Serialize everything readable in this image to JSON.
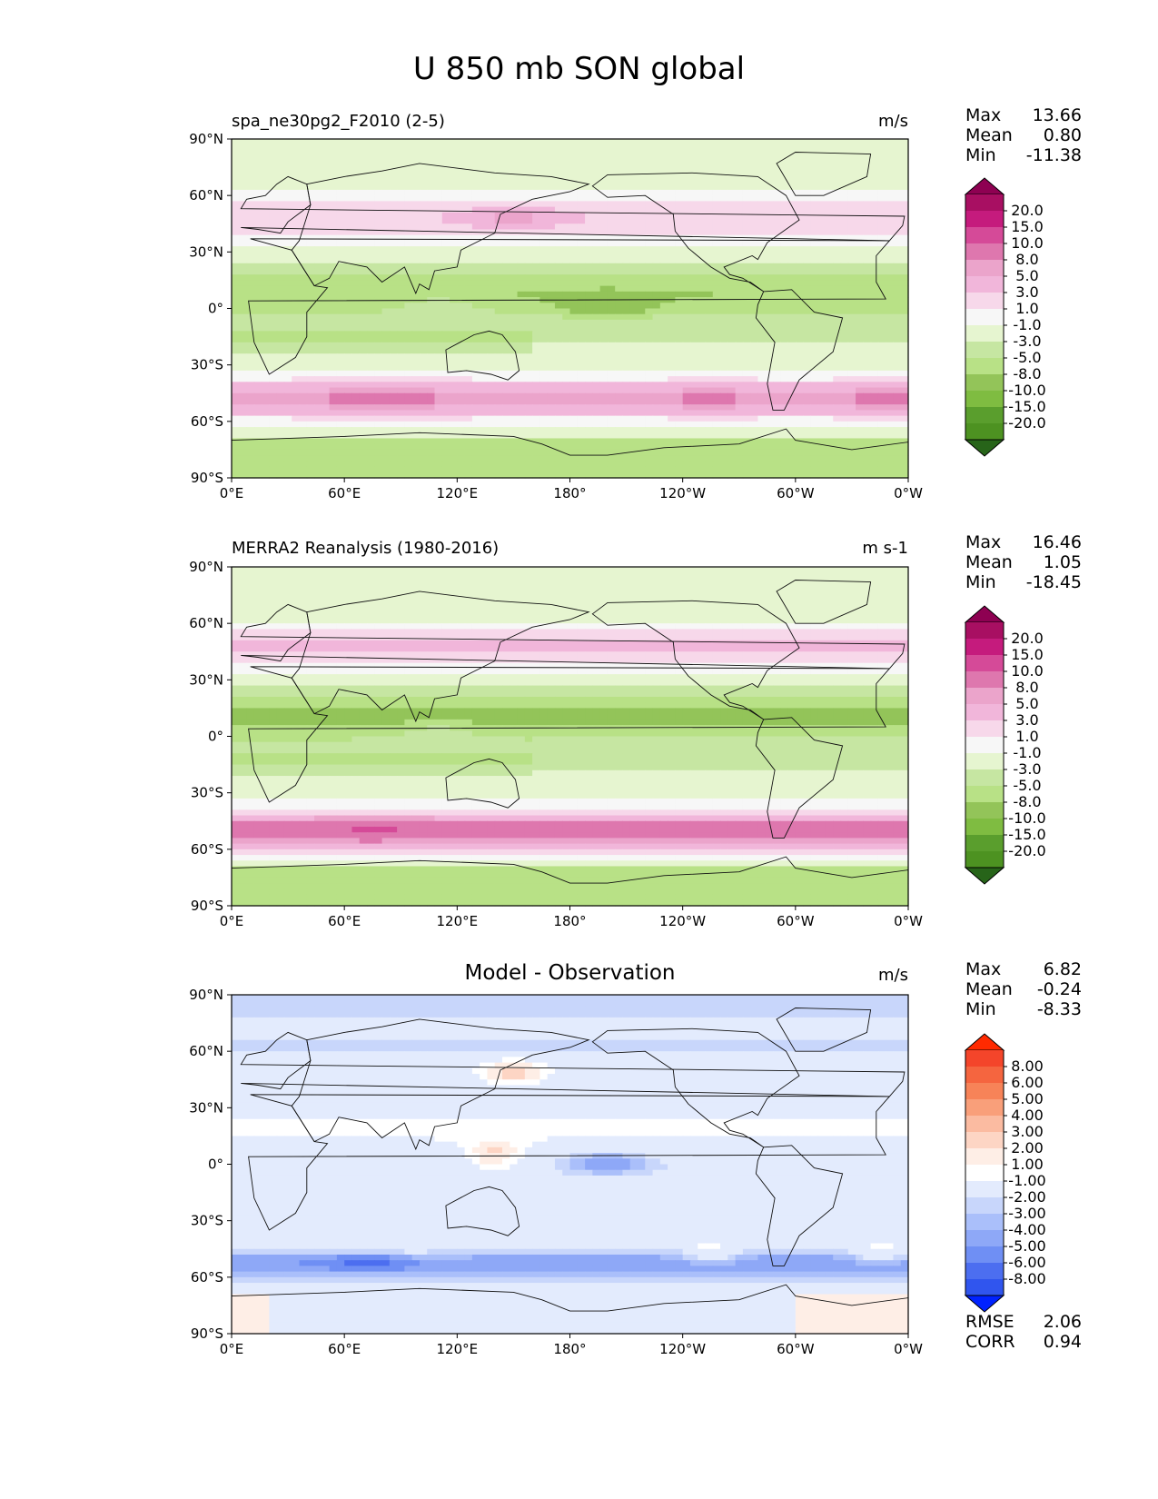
{
  "figure": {
    "title": "U 850 mb SON global"
  },
  "axes": {
    "lat_ticks": [
      "90°N",
      "60°N",
      "30°N",
      "0°",
      "30°S",
      "60°S",
      "90°S"
    ],
    "lon_ticks": [
      "0°E",
      "60°E",
      "120°E",
      "180°",
      "120°W",
      "60°W",
      "0°W"
    ]
  },
  "panels": [
    {
      "left_title": "spa_ne30pg2_F2010 (2-5)",
      "center_title": "",
      "units": "m/s",
      "stats": [
        {
          "label": "Max",
          "value": "13.66"
        },
        {
          "label": "Mean",
          "value": "0.80"
        },
        {
          "label": "Min",
          "value": "-11.38"
        }
      ],
      "extra_stats": [],
      "colorbar": {
        "labels": [
          "20.0",
          "15.0",
          "10.0",
          "8.0",
          "5.0",
          "3.0",
          "1.0",
          "-1.0",
          "-3.0",
          "-5.0",
          "-8.0",
          "-10.0",
          "-15.0",
          "-20.0"
        ],
        "colors": [
          "#8e0152",
          "#a80f62",
          "#c51b7d",
          "#d54a98",
          "#de77ae",
          "#eba4cb",
          "#f1b6da",
          "#f7d8ea",
          "#f7f7f7",
          "#e6f5d0",
          "#c6e6a2",
          "#b8e186",
          "#93c459",
          "#7fbc41",
          "#5a9e2d",
          "#4d9221",
          "#276419"
        ]
      }
    },
    {
      "left_title": "MERRA2 Reanalysis (1980-2016)",
      "center_title": "",
      "units": "m s-1",
      "stats": [
        {
          "label": "Max",
          "value": "16.46"
        },
        {
          "label": "Mean",
          "value": "1.05"
        },
        {
          "label": "Min",
          "value": "-18.45"
        }
      ],
      "extra_stats": [],
      "colorbar": {
        "labels": [
          "20.0",
          "15.0",
          "10.0",
          "8.0",
          "5.0",
          "3.0",
          "1.0",
          "-1.0",
          "-3.0",
          "-5.0",
          "-8.0",
          "-10.0",
          "-15.0",
          "-20.0"
        ],
        "colors": [
          "#8e0152",
          "#a80f62",
          "#c51b7d",
          "#d54a98",
          "#de77ae",
          "#eba4cb",
          "#f1b6da",
          "#f7d8ea",
          "#f7f7f7",
          "#e6f5d0",
          "#c6e6a2",
          "#b8e186",
          "#93c459",
          "#7fbc41",
          "#5a9e2d",
          "#4d9221",
          "#276419"
        ]
      }
    },
    {
      "left_title": "",
      "center_title": "Model - Observation",
      "units": "m/s",
      "stats": [
        {
          "label": "Max",
          "value": "6.82"
        },
        {
          "label": "Mean",
          "value": "-0.24"
        },
        {
          "label": "Min",
          "value": "-8.33"
        }
      ],
      "extra_stats": [
        {
          "label": "RMSE",
          "value": "2.06"
        },
        {
          "label": "CORR",
          "value": "0.94"
        }
      ],
      "colorbar": {
        "labels": [
          "8.00",
          "6.00",
          "5.00",
          "4.00",
          "3.00",
          "2.00",
          "1.00",
          "-1.00",
          "-2.00",
          "-3.00",
          "-4.00",
          "-5.00",
          "-6.00",
          "-8.00"
        ],
        "colors": [
          "#ff2a00",
          "#f4452a",
          "#f5653f",
          "#f78358",
          "#f99f7a",
          "#fbbba1",
          "#fdd5c4",
          "#feeee6",
          "#ffffff",
          "#e3ebfd",
          "#c8d6fb",
          "#aabffa",
          "#8ea8f7",
          "#6f8ff4",
          "#4c6ef0",
          "#3055ee",
          "#0022ff"
        ]
      }
    }
  ]
}
